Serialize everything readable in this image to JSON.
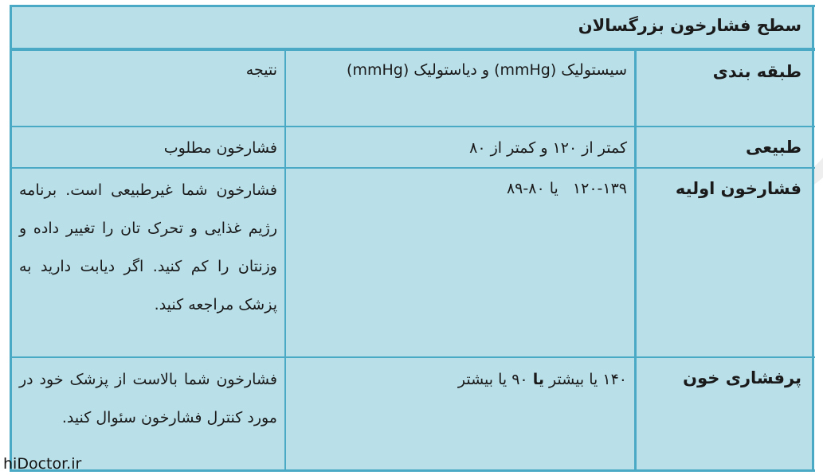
{
  "table": {
    "title": "سطح فشارخون بزرگسالان",
    "headers": {
      "category": "طبقه بندی",
      "values": "سیستولیک (mmHg) و دیاستولیک (mmHg)",
      "result": "نتیجه"
    },
    "rows": [
      {
        "category": "طبیعی",
        "values": "کمتر از ۱۲۰ و کمتر از ۸۰",
        "result": "فشارخون مطلوب"
      },
      {
        "category": "فشارخون اولیه",
        "values": "۱۲۰-۱۳۹   یا ۸۰-۸۹",
        "result": "فشارخون شما غیرطبیعی است. برنامه رژیم غذایی و تحرک تان را تغییر داده و وزنتان را کم کنید. اگر دیابت دارید به پزشک مراجعه کنید."
      },
      {
        "category": "پرفشاری خون",
        "values_part1": "۱۴۰ یا بیشتر",
        "values_bold": "یا",
        "values_part2": "۹۰ یا بیشتر",
        "result": "فشارخون شما بالاست از پزشک خود در مورد کنترل فشارخون سئوال کنید."
      }
    ]
  },
  "watermark": "hiDoctor.ir",
  "colors": {
    "cell_fill": "#b9dfe9",
    "border": "#4aaac5"
  }
}
